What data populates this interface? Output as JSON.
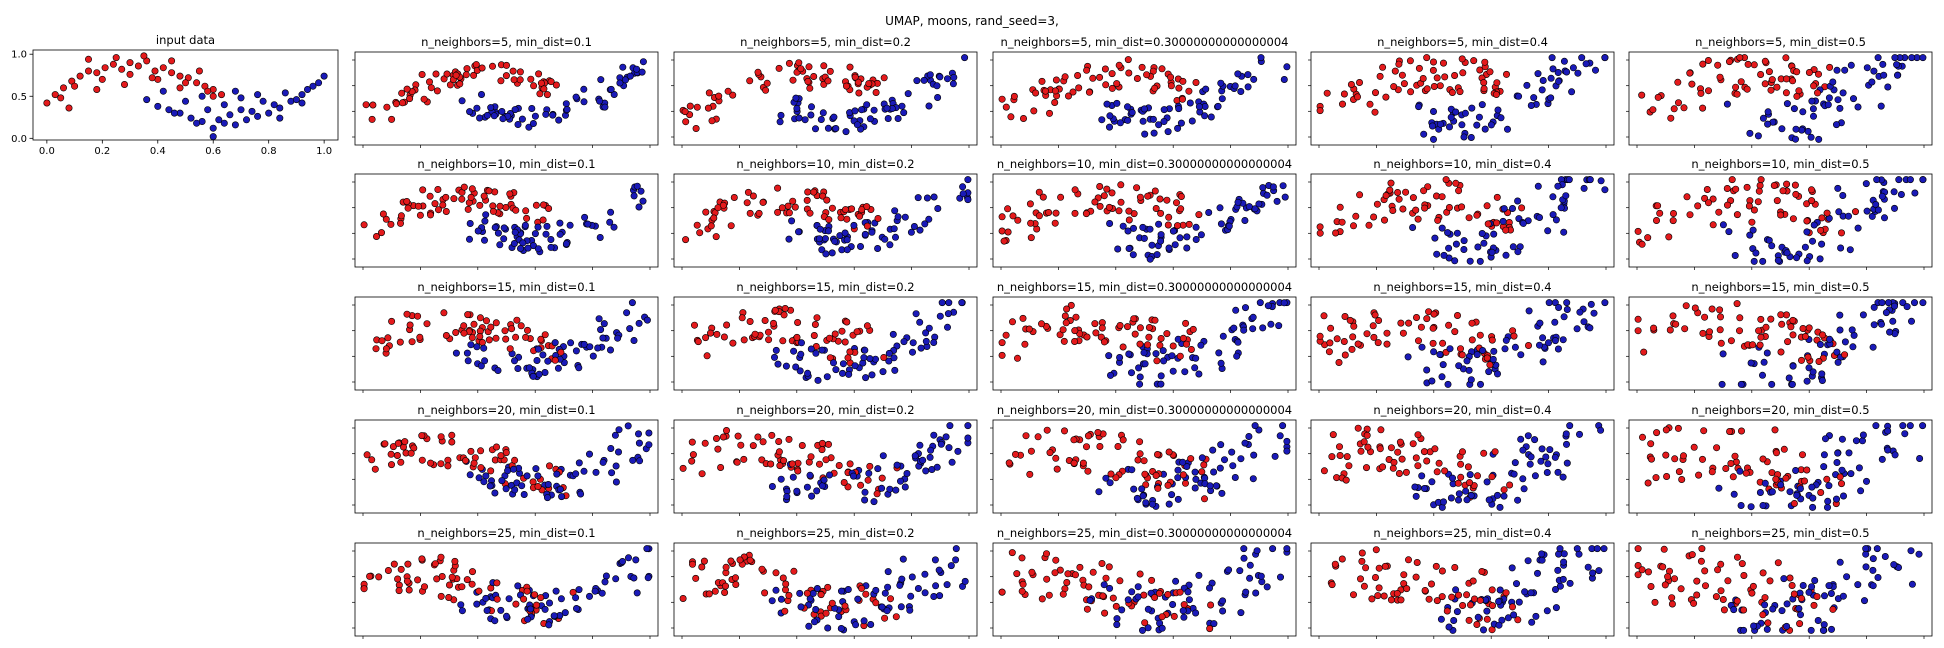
{
  "figure": {
    "suptitle": "UMAP, moons, rand_seed=3,"
  },
  "colors": {
    "class_0": "#e41a1c",
    "class_1": "#1a1ab8",
    "marker_edge": "#000000",
    "frame": "#000000"
  },
  "chart_data": [
    {
      "type": "scatter",
      "title": "input data",
      "xlim": [
        -0.05,
        1.05
      ],
      "ylim": [
        -0.02,
        1.05
      ],
      "xticks": [
        0.0,
        0.2,
        0.4,
        0.6,
        0.8,
        1.0
      ],
      "xtick_labels": [
        "0.0",
        "0.2",
        "0.4",
        "0.6",
        "0.8",
        "1.0"
      ],
      "yticks": [
        0.0,
        0.5,
        1.0
      ],
      "ytick_labels": [
        "0.0",
        "0.5",
        "1.0"
      ],
      "series": [
        {
          "class": 0,
          "color": "#e41a1c",
          "x": [
            0.0,
            0.03,
            0.06,
            0.09,
            0.12,
            0.15,
            0.18,
            0.21,
            0.24,
            0.27,
            0.3,
            0.33,
            0.36,
            0.39,
            0.42,
            0.45,
            0.48,
            0.51,
            0.54,
            0.57,
            0.6,
            0.63,
            0.05,
            0.1,
            0.2,
            0.3,
            0.4,
            0.5,
            0.6,
            0.15,
            0.25,
            0.35,
            0.45,
            0.55,
            0.08,
            0.18,
            0.28,
            0.38,
            0.48,
            0.58
          ],
          "y": [
            0.42,
            0.52,
            0.6,
            0.68,
            0.74,
            0.8,
            0.78,
            0.84,
            0.88,
            0.82,
            0.9,
            0.86,
            0.92,
            0.8,
            0.84,
            0.78,
            0.74,
            0.72,
            0.66,
            0.62,
            0.58,
            0.52,
            0.48,
            0.62,
            0.7,
            0.76,
            0.7,
            0.66,
            0.5,
            0.94,
            0.96,
            0.98,
            0.92,
            0.8,
            0.36,
            0.58,
            0.64,
            0.72,
            0.6,
            0.56
          ]
        },
        {
          "class": 1,
          "color": "#1a1ab8",
          "x": [
            0.36,
            0.4,
            0.44,
            0.48,
            0.52,
            0.56,
            0.6,
            0.64,
            0.68,
            0.72,
            0.76,
            0.8,
            0.84,
            0.88,
            0.92,
            0.96,
            1.0,
            0.42,
            0.5,
            0.58,
            0.66,
            0.74,
            0.82,
            0.9,
            0.98,
            0.46,
            0.54,
            0.62,
            0.7,
            0.78,
            0.86,
            0.94,
            0.6,
            0.64,
            0.7,
            0.76,
            0.84,
            0.92,
            0.56,
            0.68
          ],
          "y": [
            0.46,
            0.38,
            0.34,
            0.3,
            0.24,
            0.2,
            0.12,
            0.18,
            0.16,
            0.22,
            0.26,
            0.3,
            0.36,
            0.44,
            0.52,
            0.62,
            0.74,
            0.56,
            0.44,
            0.34,
            0.28,
            0.32,
            0.4,
            0.46,
            0.66,
            0.3,
            0.18,
            0.22,
            0.34,
            0.44,
            0.54,
            0.58,
            0.02,
            0.4,
            0.48,
            0.52,
            0.24,
            0.42,
            0.5,
            0.56
          ]
        }
      ]
    },
    {
      "type": "scatter",
      "title": "n_neighbors=5, min_dist=0.1",
      "n_neighbors": 5,
      "min_dist": 0.1
    },
    {
      "type": "scatter",
      "title": "n_neighbors=5, min_dist=0.2",
      "n_neighbors": 5,
      "min_dist": 0.2
    },
    {
      "type": "scatter",
      "title": "n_neighbors=5, min_dist=0.30000000000000004",
      "n_neighbors": 5,
      "min_dist": 0.30000000000000004
    },
    {
      "type": "scatter",
      "title": "n_neighbors=5, min_dist=0.4",
      "n_neighbors": 5,
      "min_dist": 0.4
    },
    {
      "type": "scatter",
      "title": "n_neighbors=5, min_dist=0.5",
      "n_neighbors": 5,
      "min_dist": 0.5
    },
    {
      "type": "scatter",
      "title": "n_neighbors=10, min_dist=0.1",
      "n_neighbors": 10,
      "min_dist": 0.1
    },
    {
      "type": "scatter",
      "title": "n_neighbors=10, min_dist=0.2",
      "n_neighbors": 10,
      "min_dist": 0.2
    },
    {
      "type": "scatter",
      "title": "n_neighbors=10, min_dist=0.30000000000000004",
      "n_neighbors": 10,
      "min_dist": 0.30000000000000004
    },
    {
      "type": "scatter",
      "title": "n_neighbors=10, min_dist=0.4",
      "n_neighbors": 10,
      "min_dist": 0.4
    },
    {
      "type": "scatter",
      "title": "n_neighbors=10, min_dist=0.5",
      "n_neighbors": 10,
      "min_dist": 0.5
    },
    {
      "type": "scatter",
      "title": "n_neighbors=15, min_dist=0.1",
      "n_neighbors": 15,
      "min_dist": 0.1
    },
    {
      "type": "scatter",
      "title": "n_neighbors=15, min_dist=0.2",
      "n_neighbors": 15,
      "min_dist": 0.2
    },
    {
      "type": "scatter",
      "title": "n_neighbors=15, min_dist=0.30000000000000004",
      "n_neighbors": 15,
      "min_dist": 0.30000000000000004
    },
    {
      "type": "scatter",
      "title": "n_neighbors=15, min_dist=0.4",
      "n_neighbors": 15,
      "min_dist": 0.4
    },
    {
      "type": "scatter",
      "title": "n_neighbors=15, min_dist=0.5",
      "n_neighbors": 15,
      "min_dist": 0.5
    },
    {
      "type": "scatter",
      "title": "n_neighbors=20, min_dist=0.1",
      "n_neighbors": 20,
      "min_dist": 0.1
    },
    {
      "type": "scatter",
      "title": "n_neighbors=20, min_dist=0.2",
      "n_neighbors": 20,
      "min_dist": 0.2
    },
    {
      "type": "scatter",
      "title": "n_neighbors=20, min_dist=0.30000000000000004",
      "n_neighbors": 20,
      "min_dist": 0.30000000000000004
    },
    {
      "type": "scatter",
      "title": "n_neighbors=20, min_dist=0.4",
      "n_neighbors": 20,
      "min_dist": 0.4
    },
    {
      "type": "scatter",
      "title": "n_neighbors=20, min_dist=0.5",
      "n_neighbors": 20,
      "min_dist": 0.5
    },
    {
      "type": "scatter",
      "title": "n_neighbors=25, min_dist=0.1",
      "n_neighbors": 25,
      "min_dist": 0.1
    },
    {
      "type": "scatter",
      "title": "n_neighbors=25, min_dist=0.2",
      "n_neighbors": 25,
      "min_dist": 0.2
    },
    {
      "type": "scatter",
      "title": "n_neighbors=25, min_dist=0.30000000000000004",
      "n_neighbors": 25,
      "min_dist": 0.30000000000000004
    },
    {
      "type": "scatter",
      "title": "n_neighbors=25, min_dist=0.4",
      "n_neighbors": 25,
      "min_dist": 0.4
    },
    {
      "type": "scatter",
      "title": "n_neighbors=25, min_dist=0.5",
      "n_neighbors": 25,
      "min_dist": 0.5
    }
  ]
}
